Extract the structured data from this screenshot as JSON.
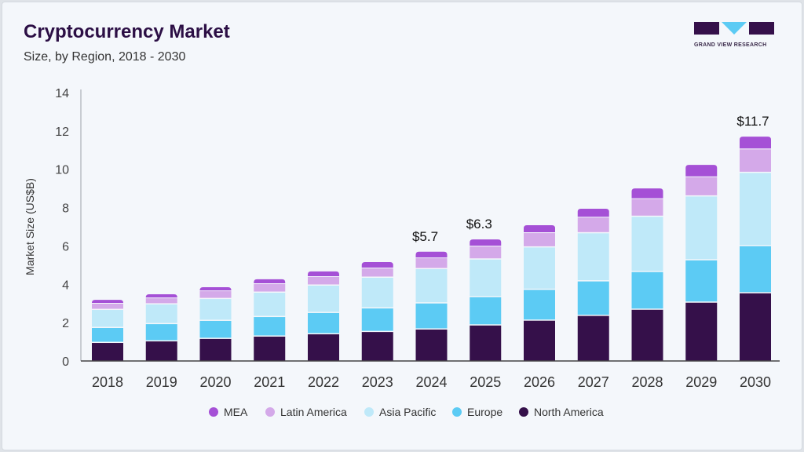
{
  "header": {
    "title": "Cryptocurrency Market",
    "subtitle": "Size, by Region, 2018 - 2030"
  },
  "logo": {
    "text": "GRAND VIEW RESEARCH"
  },
  "chart_data": {
    "type": "bar",
    "stacked": true,
    "title": "Cryptocurrency Market",
    "subtitle": "Size, by Region, 2018 - 2030",
    "xlabel": "",
    "ylabel": "Market Size (US$B)",
    "ylim": [
      0,
      14
    ],
    "yticks": [
      0,
      2,
      4,
      6,
      8,
      10,
      12,
      14
    ],
    "grid": false,
    "legend_position": "bottom",
    "categories": [
      "2018",
      "2019",
      "2020",
      "2021",
      "2022",
      "2023",
      "2024",
      "2025",
      "2026",
      "2027",
      "2028",
      "2029",
      "2030"
    ],
    "series": [
      {
        "name": "North America",
        "color": "#35104a",
        "values": [
          0.94,
          1.02,
          1.15,
          1.27,
          1.39,
          1.51,
          1.64,
          1.85,
          2.1,
          2.35,
          2.67,
          3.04,
          3.53
        ]
      },
      {
        "name": "Europe",
        "color": "#5ccbf4",
        "values": [
          0.78,
          0.9,
          0.94,
          1.02,
          1.11,
          1.23,
          1.36,
          1.48,
          1.61,
          1.8,
          1.97,
          2.21,
          2.46
        ]
      },
      {
        "name": "Asia Pacific",
        "color": "#bfe9f9",
        "values": [
          0.94,
          1.03,
          1.14,
          1.27,
          1.43,
          1.6,
          1.79,
          1.96,
          2.21,
          2.51,
          2.88,
          3.33,
          3.82
        ]
      },
      {
        "name": "Latin America",
        "color": "#d4a9e9",
        "values": [
          0.33,
          0.32,
          0.41,
          0.45,
          0.45,
          0.49,
          0.57,
          0.68,
          0.75,
          0.82,
          0.93,
          1.01,
          1.23
        ]
      },
      {
        "name": "MEA",
        "color": "#a550d6",
        "values": [
          0.2,
          0.21,
          0.21,
          0.25,
          0.29,
          0.33,
          0.34,
          0.37,
          0.41,
          0.46,
          0.55,
          0.64,
          0.66
        ]
      }
    ],
    "annotations": [
      {
        "category": "2024",
        "text": "$5.7"
      },
      {
        "category": "2025",
        "text": "$6.3"
      },
      {
        "category": "2030",
        "text": "$11.7"
      }
    ],
    "legend_order": [
      "MEA",
      "Latin America",
      "Asia Pacific",
      "Europe",
      "North America"
    ]
  }
}
